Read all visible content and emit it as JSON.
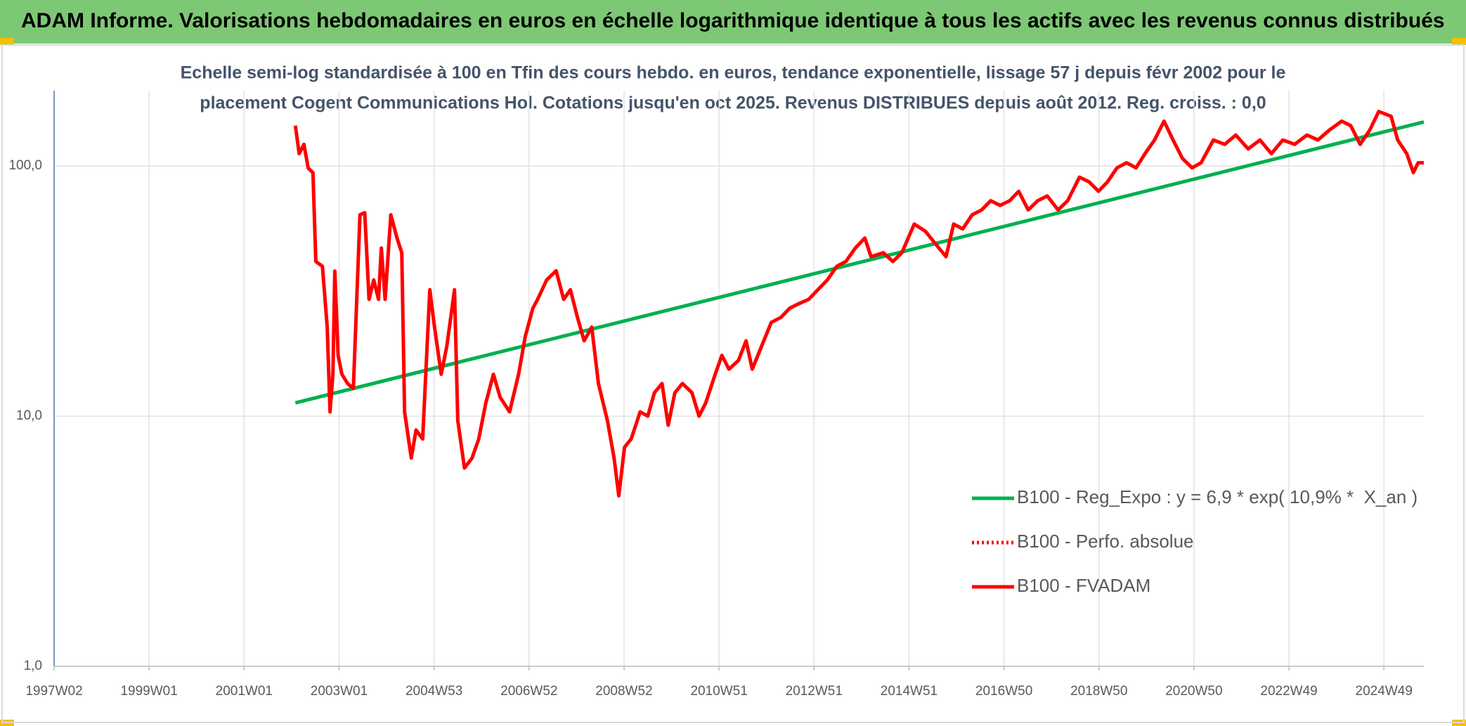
{
  "chart_data": {
    "type": "line",
    "title": "ADAM Informe. Valorisations hebdomadaires en euros en échelle logarithmique identique à tous les actifs avec les revenus connus distribués",
    "subtitle": [
      "Echelle semi-log standardisée à 100 en Tfin des cours hebdo. en euros, tendance exponentielle, lissage 57 j depuis févr 2002 pour le",
      "placement Cogent Communications Hol. Cotations jusqu'en oct 2025. Revenus DISTRIBUES depuis août 2012. Reg. croiss. : 0,0"
    ],
    "log_y": true,
    "grid": true,
    "legend": "lower right",
    "xlim": [
      1997.0,
      2025.84
    ],
    "xticks": [
      {
        "value": 1997.0,
        "label": "1997W02"
      },
      {
        "value": 1999.0,
        "label": "1999W01"
      },
      {
        "value": 2001.0,
        "label": "2001W01"
      },
      {
        "value": 2003.0,
        "label": "2003W01"
      },
      {
        "value": 2005.0,
        "label": "2004W53"
      },
      {
        "value": 2007.0,
        "label": "2006W52"
      },
      {
        "value": 2009.0,
        "label": "2008W52"
      },
      {
        "value": 2011.0,
        "label": "2010W51"
      },
      {
        "value": 2013.0,
        "label": "2012W51"
      },
      {
        "value": 2015.0,
        "label": "2014W51"
      },
      {
        "value": 2017.0,
        "label": "2016W50"
      },
      {
        "value": 2019.0,
        "label": "2018W50"
      },
      {
        "value": 2021.0,
        "label": "2020W50"
      },
      {
        "value": 2023.0,
        "label": "2022W49"
      },
      {
        "value": 2025.0,
        "label": "2024W49"
      }
    ],
    "ylim": [
      1,
      200
    ],
    "yticks": [
      {
        "value": 1,
        "label": "1,0"
      },
      {
        "value": 10,
        "label": "10,0"
      },
      {
        "value": 100,
        "label": "100,0"
      }
    ],
    "series": [
      {
        "name": "B100 - Reg_Expo : y = 6,9 * exp( 10,9% *  X_an )",
        "color": "#00b050",
        "style": "solid",
        "x": [
          2002.08,
          2025.84
        ],
        "values": [
          11.3,
          150
        ]
      },
      {
        "name": "B100 - Perfo. absolue",
        "color": "#ff0000",
        "style": "dotted",
        "x": [],
        "values": []
      },
      {
        "name": "B100 - FVADAM",
        "color": "#ff0000",
        "style": "solid",
        "x": [
          2002.08,
          2002.16,
          2002.26,
          2002.35,
          2002.45,
          2002.51,
          2002.65,
          2002.75,
          2002.81,
          2002.87,
          2002.91,
          2002.98,
          2003.06,
          2003.18,
          2003.3,
          2003.44,
          2003.54,
          2003.63,
          2003.73,
          2003.83,
          2003.89,
          2003.97,
          2004.09,
          2004.22,
          2004.32,
          2004.38,
          2004.52,
          2004.62,
          2004.76,
          2004.91,
          2005.01,
          2005.15,
          2005.27,
          2005.43,
          2005.5,
          2005.64,
          2005.8,
          2005.94,
          2006.09,
          2006.25,
          2006.39,
          2006.59,
          2006.78,
          2006.92,
          2007.08,
          2007.18,
          2007.37,
          2007.57,
          2007.73,
          2007.87,
          2008.02,
          2008.16,
          2008.32,
          2008.46,
          2008.65,
          2008.79,
          2008.89,
          2009.01,
          2009.15,
          2009.34,
          2009.5,
          2009.64,
          2009.8,
          2009.93,
          2010.07,
          2010.23,
          2010.43,
          2010.58,
          2010.72,
          2010.92,
          2011.06,
          2011.21,
          2011.41,
          2011.57,
          2011.7,
          2011.9,
          2012.1,
          2012.3,
          2012.49,
          2012.69,
          2012.89,
          2013.08,
          2013.28,
          2013.48,
          2013.67,
          2013.87,
          2014.07,
          2014.2,
          2014.46,
          2014.66,
          2014.85,
          2015.11,
          2015.35,
          2015.54,
          2015.78,
          2015.94,
          2016.13,
          2016.33,
          2016.53,
          2016.72,
          2016.92,
          2017.12,
          2017.31,
          2017.51,
          2017.71,
          2017.91,
          2018.14,
          2018.34,
          2018.59,
          2018.79,
          2018.99,
          2019.18,
          2019.38,
          2019.58,
          2019.78,
          2019.97,
          2020.17,
          2020.37,
          2020.56,
          2020.76,
          2020.96,
          2021.15,
          2021.41,
          2021.65,
          2021.88,
          2022.14,
          2022.39,
          2022.63,
          2022.87,
          2023.12,
          2023.38,
          2023.61,
          2023.85,
          2024.11,
          2024.3,
          2024.5,
          2024.7,
          2024.89,
          2025.15,
          2025.29,
          2025.48,
          2025.62,
          2025.72,
          2025.84
        ],
        "values": [
          145,
          112,
          122,
          98,
          94,
          41.5,
          39.7,
          22.7,
          10.4,
          14.7,
          38,
          17.5,
          14.7,
          13.5,
          12.9,
          63.8,
          65,
          29.3,
          35,
          29.3,
          47,
          29.3,
          63.8,
          51.5,
          45,
          10.4,
          6.8,
          8.8,
          8.1,
          32,
          22.7,
          14.7,
          19.1,
          32,
          9.6,
          6.2,
          6.8,
          8.1,
          11.3,
          14.7,
          11.9,
          10.4,
          14.7,
          20.8,
          27,
          29.3,
          35,
          38.1,
          29.3,
          32,
          24.8,
          20,
          22.7,
          13.5,
          9.6,
          6.8,
          4.8,
          7.5,
          8.1,
          10.4,
          10,
          12.4,
          13.5,
          9.2,
          12.4,
          13.5,
          12.4,
          10,
          11.3,
          14.7,
          17.5,
          15.4,
          16.7,
          20,
          15.4,
          19.1,
          23.7,
          24.8,
          27,
          28.2,
          29.3,
          32,
          35,
          39.7,
          41.5,
          47,
          51.5,
          43.4,
          45,
          41.5,
          45,
          58.6,
          54.7,
          49.3,
          43.4,
          58.6,
          56,
          63.8,
          66.7,
          72.6,
          69.6,
          72.6,
          79.2,
          66.7,
          72.6,
          75.9,
          66.7,
          72.6,
          90.2,
          86.4,
          79.2,
          86.4,
          98.3,
          103,
          98.3,
          112,
          127,
          151,
          127,
          107,
          98.3,
          103,
          127,
          122,
          133,
          117,
          127,
          112,
          127,
          122,
          133,
          127,
          139,
          151,
          145,
          122,
          139,
          165,
          158,
          127,
          112,
          94,
          103,
          103
        ]
      }
    ]
  }
}
